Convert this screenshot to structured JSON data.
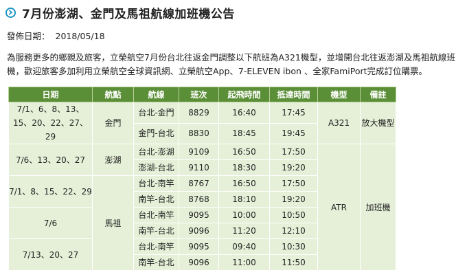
{
  "title": "7月份澎湖、金門及馬祖航線加班機公告",
  "meta": {
    "label": "發佈日期：",
    "date": "2018/05/18"
  },
  "intro": "為服務更多的鄉親及旅客，立榮航空7月份台北往返金門調整以下航班為A321機型，並增開台北往返澎湖及馬祖航線班機，歡迎旅客多加利用立榮航空全球資訊網、立榮航空App、7-ELEVEN ibon 、全家FamiPort完成訂位購票。",
  "table": {
    "headers": [
      "日期",
      "航點",
      "航線",
      "班次",
      "起飛時間",
      "抵達時間",
      "機型",
      "備註"
    ],
    "dates": [
      "7/1、6、8、13、15、20、22、27、29",
      "7/6、13、20、27",
      "7/1、8、15、22、29",
      "7/6",
      "7/13、20、27"
    ],
    "destinations": [
      "金門",
      "澎湖",
      "馬祖"
    ],
    "aircraft": [
      "A321",
      "ATR"
    ],
    "remarks": [
      "放大機型",
      "加班機"
    ],
    "rows": [
      {
        "route": "台北-金門",
        "flight": "8829",
        "dep": "16:40",
        "arr": "17:45"
      },
      {
        "route": "金門-台北",
        "flight": "8830",
        "dep": "18:45",
        "arr": "19:45"
      },
      {
        "route": "台北-澎湖",
        "flight": "9109",
        "dep": "16:50",
        "arr": "17:50"
      },
      {
        "route": "澎湖-台北",
        "flight": "9110",
        "dep": "18:30",
        "arr": "19:20"
      },
      {
        "route": "台北-南竿",
        "flight": "8767",
        "dep": "16:50",
        "arr": "17:50"
      },
      {
        "route": "南竿-台北",
        "flight": "8768",
        "dep": "18:10",
        "arr": "19:20"
      },
      {
        "route": "台北-南竿",
        "flight": "9095",
        "dep": "10:00",
        "arr": "10:50"
      },
      {
        "route": "南竿-台北",
        "flight": "9096",
        "dep": "11:20",
        "arr": "12:10"
      },
      {
        "route": "台北-南竿",
        "flight": "9095",
        "dep": "09:40",
        "arr": "10:30"
      },
      {
        "route": "南竿-台北",
        "flight": "9096",
        "dep": "11:00",
        "arr": "11:50"
      }
    ]
  }
}
